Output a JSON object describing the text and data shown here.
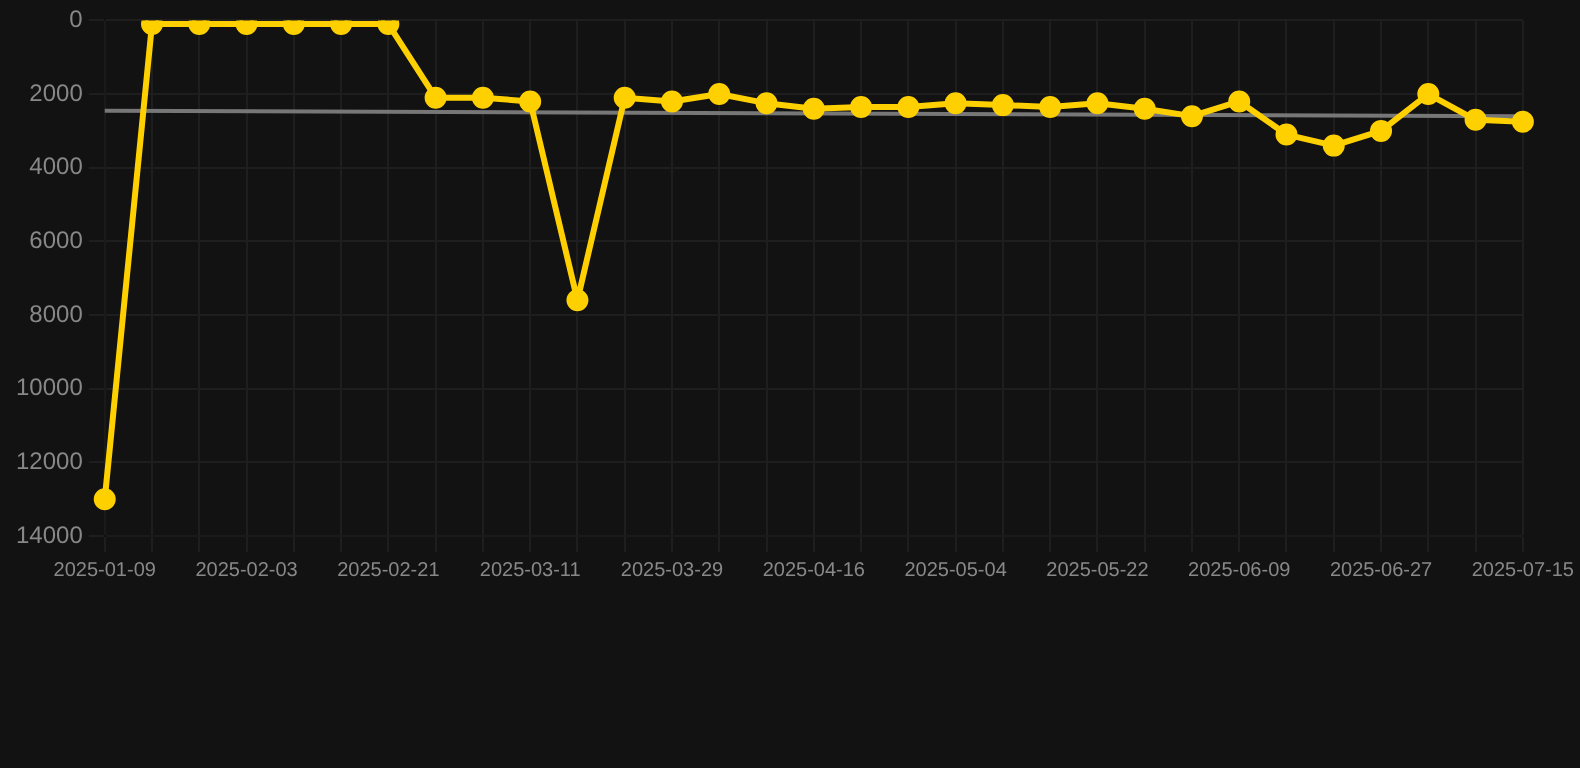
{
  "chart_data": {
    "type": "line",
    "categories": [
      "2025-01-09",
      null,
      null,
      "2025-02-03",
      null,
      null,
      "2025-02-21",
      null,
      null,
      "2025-03-11",
      null,
      null,
      "2025-03-29",
      null,
      null,
      "2025-04-16",
      null,
      null,
      "2025-05-04",
      null,
      null,
      "2025-05-22",
      null,
      null,
      "2025-06-09",
      null,
      null,
      "2025-06-27",
      null,
      null,
      "2025-07-15"
    ],
    "series": [
      {
        "color": "#ffd000",
        "values": [
          13000,
          100,
          100,
          100,
          100,
          100,
          100,
          2100,
          2100,
          2200,
          7600,
          2100,
          2200,
          2000,
          2250,
          2400,
          2350,
          2350,
          2250,
          2300,
          2350,
          2250,
          2400,
          2600,
          2200,
          3100,
          3400,
          3000,
          2000,
          2700,
          2750
        ],
        "marker": "circle"
      },
      {
        "type": "line",
        "color": "#777777",
        "values": [
          2450,
          null,
          null,
          null,
          null,
          null,
          null,
          null,
          null,
          null,
          null,
          null,
          null,
          null,
          null,
          null,
          null,
          null,
          null,
          null,
          null,
          null,
          null,
          null,
          null,
          null,
          null,
          null,
          null,
          null,
          2600
        ],
        "marker": "none"
      }
    ],
    "ylim": [
      14000,
      0
    ],
    "yticks": [
      0,
      2000,
      4000,
      6000,
      8000,
      10000,
      12000,
      14000
    ],
    "grid": true,
    "legend": false
  }
}
